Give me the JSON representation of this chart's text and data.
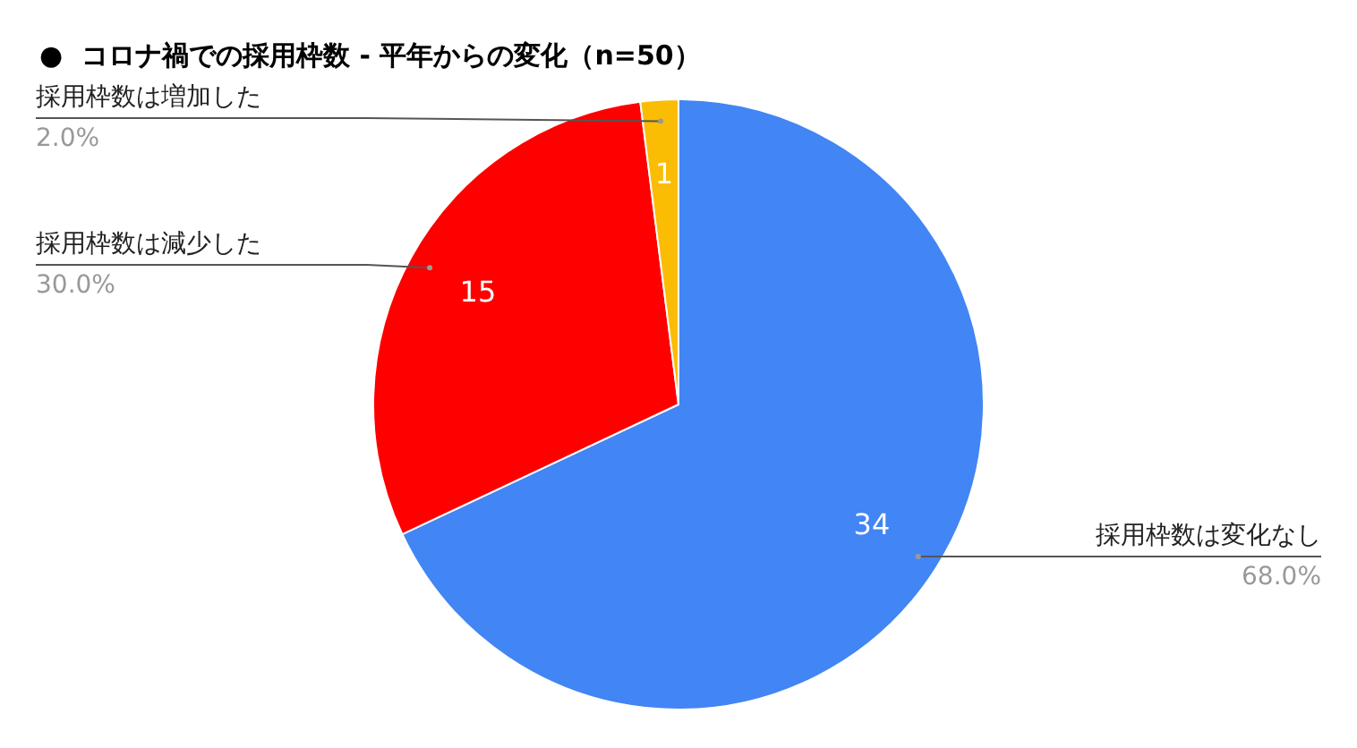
{
  "chart_data": {
    "type": "pie",
    "title": "●  コロナ禍での採用枠数 - 平年からの変化（n=50）",
    "categories": [
      "採用枠数は変化なし",
      "採用枠数は減少した",
      "採用枠数は増加した"
    ],
    "values": [
      68,
      30,
      2
    ],
    "colors": [
      "#4285f4",
      "#ff0000",
      "#fbbc04"
    ],
    "value_labels": [
      "68.0%",
      "30.0%",
      "2.0%"
    ],
    "annotations": [
      {
        "text": "34",
        "x": "採用枠数は変化なし"
      },
      {
        "text": "15",
        "x": "採用枠数は減少した"
      },
      {
        "text": "1",
        "x": "採用枠数は増加した"
      }
    ]
  }
}
